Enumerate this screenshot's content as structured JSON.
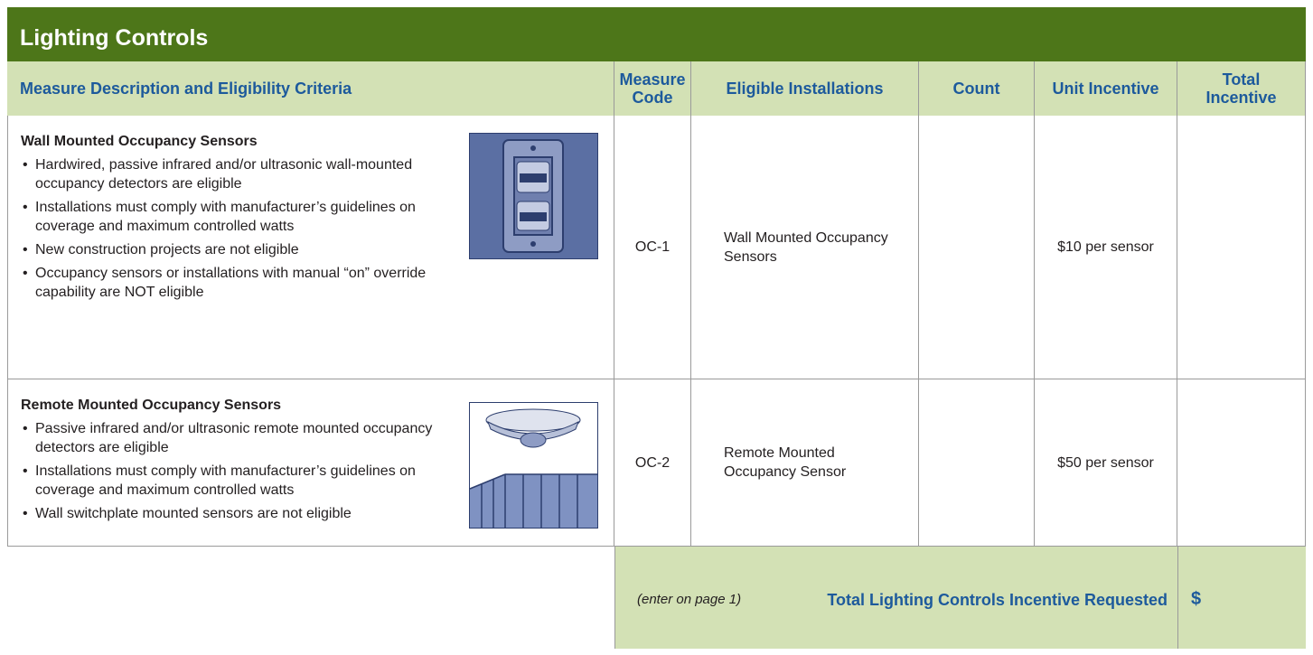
{
  "header": {
    "title": "Lighting Controls"
  },
  "table": {
    "columns": [
      "Measure Description and Eligibility Criteria",
      "Measure Code",
      "Eligible Installations",
      "Count",
      "Unit Incentive",
      "Total Incentive"
    ],
    "rows": [
      {
        "title": "Wall Mounted Occupancy Sensors",
        "bullets": [
          "Hardwired, passive infrared and/or ultrasonic wall-mounted occupancy detectors are eligible",
          "Installations must comply with manufacturer’s guidelines on coverage and maximum controlled watts",
          "New construction projects are not eligible",
          "Occupancy sensors or installations with manual “on” override capability are NOT eligible"
        ],
        "code": "OC-1",
        "installation": "Wall Mounted Occupancy Sensors",
        "unit_incentive": "$10 per sensor"
      },
      {
        "title": "Remote Mounted Occupancy Sensors",
        "bullets": [
          "Passive infrared and/or ultrasonic remote mounted occupancy detectors are eligible",
          "Installations must comply with manufacturer’s guidelines on coverage and maximum controlled watts",
          "Wall switchplate mounted sensors are not eligible"
        ],
        "code": "OC-2",
        "installation": "Remote Mounted Occupancy Sensor",
        "unit_incentive": "$50 per sensor"
      }
    ],
    "footer": {
      "note": "(enter on page 1)",
      "label": "Total Lighting Controls Incentive Requested",
      "currency": "$"
    }
  }
}
